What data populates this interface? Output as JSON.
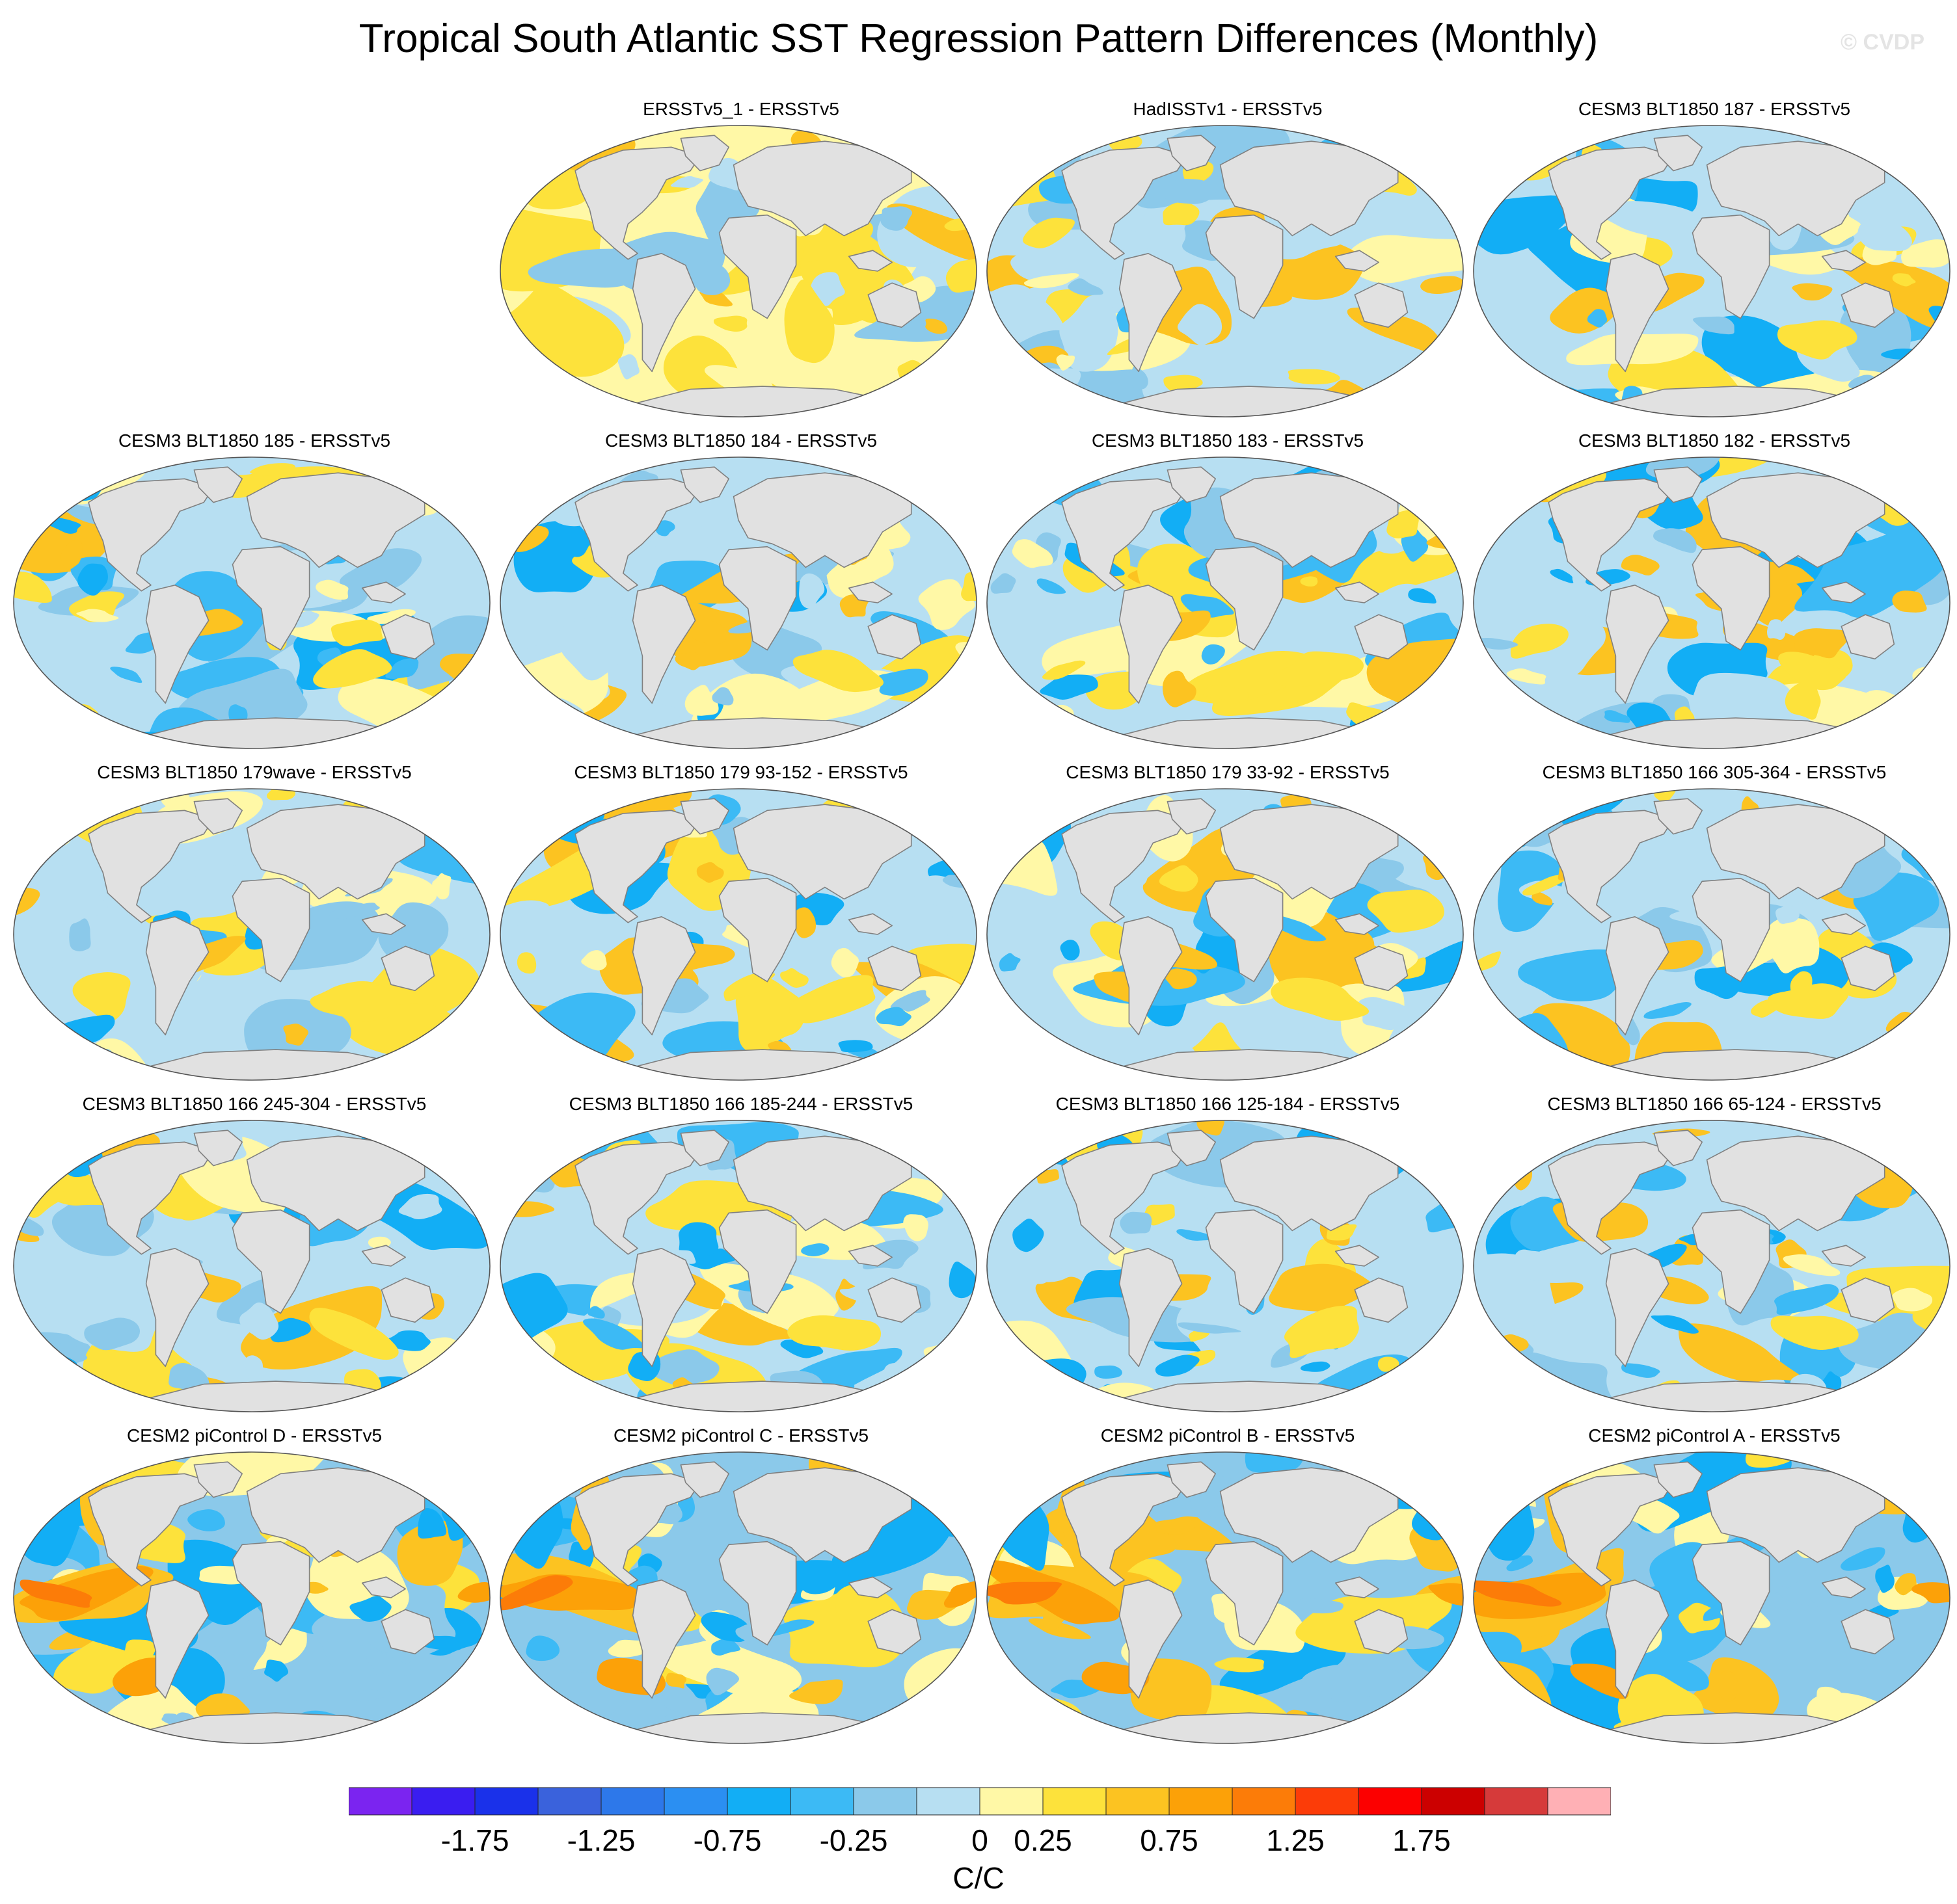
{
  "title": "Tropical South Atlantic SST Regression Pattern Differences (Monthly)",
  "watermark": "© CVDP",
  "colors": {
    "land": "#e1e1e1",
    "coast": "#808080",
    "palette": [
      "#7b24f0",
      "#3a1df0",
      "#1a31ea",
      "#3a62dc",
      "#2d78ea",
      "#2b8ff2",
      "#12aef5",
      "#3cbaf5",
      "#8bc9ea",
      "#b7dff2",
      "#fff8a6",
      "#fde23b",
      "#fcc321",
      "#fca108",
      "#fc7c08",
      "#fc3c08",
      "#fc0000",
      "#cc0000",
      "#d63a3a",
      "#ffb0b5"
    ]
  },
  "panels": [
    {
      "title": "ERSSTv5_1 - ERSSTv5",
      "scheme": "obs"
    },
    {
      "title": "HadISSTv1 - ERSSTv5",
      "scheme": "cool"
    },
    {
      "title": "CESM3 BLT1850 187 - ERSSTv5",
      "scheme": "mix"
    },
    {
      "title": "CESM3 BLT1850 185 - ERSSTv5",
      "scheme": "mix"
    },
    {
      "title": "CESM3 BLT1850 184 - ERSSTv5",
      "scheme": "mix"
    },
    {
      "title": "CESM3 BLT1850 183 - ERSSTv5",
      "scheme": "mix"
    },
    {
      "title": "CESM3 BLT1850 182 - ERSSTv5",
      "scheme": "mix"
    },
    {
      "title": "CESM3 BLT1850 179wave - ERSSTv5",
      "scheme": "mix"
    },
    {
      "title": "CESM3 BLT1850 179 93-152 - ERSSTv5",
      "scheme": "mix"
    },
    {
      "title": "CESM3 BLT1850 179 33-92 - ERSSTv5",
      "scheme": "mix"
    },
    {
      "title": "CESM3 BLT1850 166 305-364 - ERSSTv5",
      "scheme": "mix"
    },
    {
      "title": "CESM3 BLT1850 166 245-304 - ERSSTv5",
      "scheme": "mix"
    },
    {
      "title": "CESM3 BLT1850 166 185-244 - ERSSTv5",
      "scheme": "mix"
    },
    {
      "title": "CESM3 BLT1850 166 125-184 - ERSSTv5",
      "scheme": "mix"
    },
    {
      "title": "CESM3 BLT1850 166 65-124 - ERSSTv5",
      "scheme": "mix"
    },
    {
      "title": "CESM2 piControl D - ERSSTv5",
      "scheme": "warm"
    },
    {
      "title": "CESM2 piControl C - ERSSTv5",
      "scheme": "warm"
    },
    {
      "title": "CESM2 piControl B - ERSSTv5",
      "scheme": "warm"
    },
    {
      "title": "CESM2 piControl A - ERSSTv5",
      "scheme": "warm"
    }
  ],
  "colorbar": {
    "labels": [
      "-1.75",
      "-1.25",
      "-0.75",
      "-0.25",
      "0",
      "0.25",
      "0.75",
      "1.25",
      "1.75"
    ],
    "units": "C/C"
  }
}
